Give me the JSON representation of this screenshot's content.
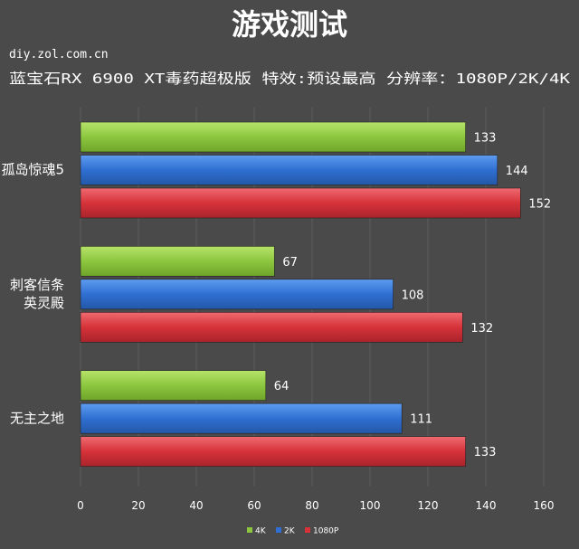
{
  "title": "游戏测试",
  "watermark": "diy.zol.com.cn",
  "subtitle": "蓝宝石RX 6900 XT毒药超极版  特效:预设最高  分辨率：1080P/2K/4K",
  "colors": {
    "background": "#4a4a4a",
    "grid": "#5c5c5c",
    "text": "#ffffff",
    "green": "#8cc63f",
    "blue": "#2f6fd1",
    "red": "#d6323a"
  },
  "chart_data": {
    "type": "bar",
    "orientation": "horizontal",
    "categories": [
      [
        "孤岛惊魂5"
      ],
      [
        "刺客信条",
        "英灵殿"
      ],
      [
        "无主之地"
      ]
    ],
    "series": [
      {
        "name": "4K",
        "color": "#8cc63f",
        "values": [
          133,
          67,
          64
        ]
      },
      {
        "name": "2K",
        "color": "#2f6fd1",
        "values": [
          144,
          108,
          111
        ]
      },
      {
        "name": "1080P",
        "color": "#d6323a",
        "values": [
          152,
          132,
          133
        ]
      }
    ],
    "xlim": [
      0,
      160
    ],
    "xticks": [
      0,
      20,
      40,
      60,
      80,
      100,
      120,
      140,
      160
    ],
    "grid": true,
    "legend_position": "bottom-center"
  }
}
